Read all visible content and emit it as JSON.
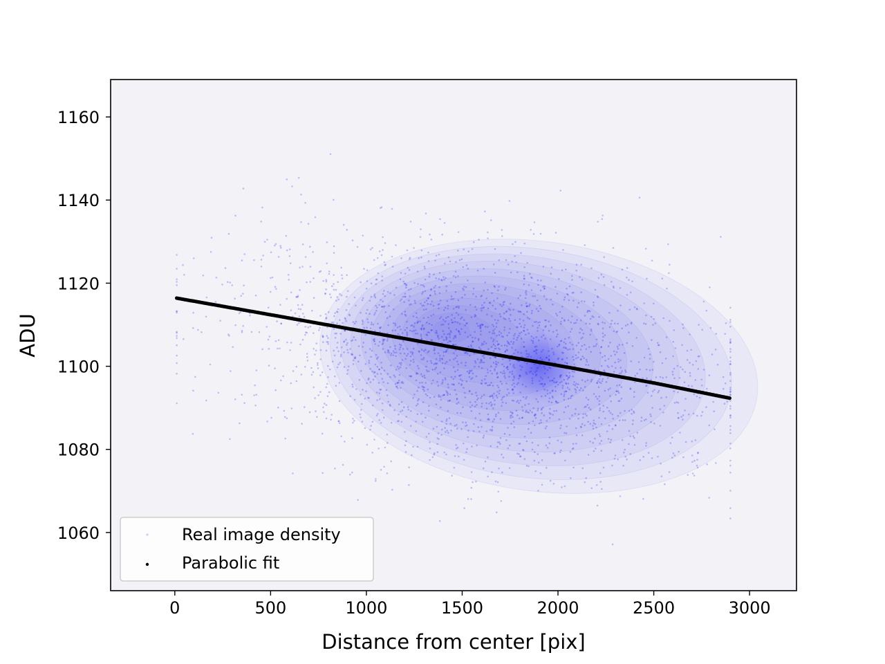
{
  "chart_data": {
    "type": "scatter",
    "title": "",
    "xlabel": "Distance from center [pix]",
    "ylabel": "ADU",
    "xlim": [
      -335,
      3245
    ],
    "ylim": [
      1046,
      1169
    ],
    "xticks": [
      0,
      500,
      1000,
      1500,
      2000,
      2500,
      3000
    ],
    "yticks": [
      1060,
      1080,
      1100,
      1120,
      1140,
      1160
    ],
    "xtick_labels": [
      "0",
      "500",
      "1000",
      "1500",
      "2000",
      "2500",
      "3000"
    ],
    "ytick_labels": [
      "1060",
      "1080",
      "1100",
      "1120",
      "1140",
      "1160"
    ],
    "grid": false,
    "legend": {
      "position": "lower-left",
      "entries": [
        "Real image density",
        "Parabolic fit"
      ]
    },
    "series": [
      {
        "name": "Real image density",
        "kind": "density-scatter",
        "color": "#0000ff",
        "center": [
          1900,
          1100
        ],
        "x_range": [
          10,
          2900
        ],
        "y_range": [
          1058,
          1160
        ]
      },
      {
        "name": "Parabolic fit",
        "kind": "line-of-points",
        "color": "#000000",
        "x": [
          10,
          500,
          1000,
          1500,
          2000,
          2500,
          2900
        ],
        "y": [
          1116.4,
          1112.4,
          1108.3,
          1104.2,
          1100.2,
          1096.0,
          1092.3
        ]
      }
    ],
    "background_color": "#f2f2f7"
  }
}
